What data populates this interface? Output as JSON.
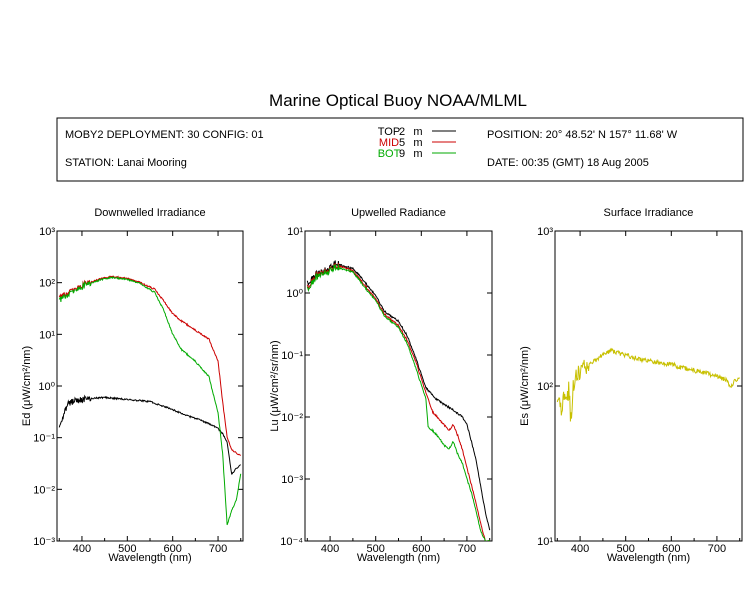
{
  "title": "Marine Optical Buoy NOAA/MLML",
  "info": {
    "deployment": "MOBY2 DEPLOYMENT: 30 CONFIG: 01",
    "station": "STATION: Lanai Mooring",
    "position": "POSITION: 20° 48.52' N   157° 11.68' W",
    "date": "DATE: 00:35 (GMT) 18 Aug 2005"
  },
  "legend": [
    {
      "label": "TOP",
      "depth": "2",
      "unit": "m",
      "color": "#000000"
    },
    {
      "label": "MID",
      "depth": "5",
      "unit": "m",
      "color": "#cc0000"
    },
    {
      "label": "BOT",
      "depth": "9",
      "unit": "m",
      "color": "#00aa00"
    }
  ],
  "chart_data": [
    {
      "type": "line",
      "title": "Downwelled Irradiance",
      "xlabel": "Wavelength (nm)",
      "ylabel": "Ed  (μW/cm²/nm)",
      "xlim": [
        345,
        755
      ],
      "ylim": [
        0.001,
        1000
      ],
      "yscale": "log",
      "xticks": [
        "400",
        "500",
        "600",
        "700"
      ],
      "yticks": [
        "10⁻³",
        "10⁻²",
        "10⁻¹",
        "10⁰",
        "10¹",
        "10²",
        "10³"
      ],
      "series": [
        {
          "name": "TOP",
          "color": "#000000",
          "x": [
            350,
            360,
            370,
            380,
            400,
            450,
            500,
            550,
            600,
            630,
            660,
            690,
            700,
            710,
            720,
            725,
            730,
            740,
            750
          ],
          "y": [
            0.15,
            0.3,
            0.45,
            0.5,
            0.55,
            0.6,
            0.55,
            0.5,
            0.35,
            0.27,
            0.22,
            0.17,
            0.15,
            0.12,
            0.08,
            0.04,
            0.02,
            0.025,
            0.03
          ]
        },
        {
          "name": "MID",
          "color": "#cc0000",
          "x": [
            350,
            375,
            400,
            450,
            470,
            500,
            530,
            560,
            580,
            600,
            620,
            650,
            680,
            700,
            710,
            720,
            730,
            740,
            750
          ],
          "y": [
            50,
            65,
            90,
            125,
            130,
            120,
            100,
            75,
            45,
            25,
            18,
            12,
            8,
            3,
            0.5,
            0.1,
            0.06,
            0.05,
            0.045
          ]
        },
        {
          "name": "BOT",
          "color": "#00aa00",
          "x": [
            350,
            375,
            400,
            450,
            470,
            500,
            530,
            560,
            580,
            600,
            620,
            650,
            680,
            700,
            710,
            715,
            720,
            730,
            740,
            750
          ],
          "y": [
            45,
            60,
            85,
            120,
            125,
            115,
            95,
            65,
            30,
            10,
            5,
            3,
            1.5,
            0.3,
            0.05,
            0.01,
            0.002,
            0.004,
            0.006,
            0.02
          ]
        }
      ]
    },
    {
      "type": "line",
      "title": "Upwelled Radiance",
      "xlabel": "Wavelength (nm)",
      "ylabel": "Lu  (μW/cm²/sr/nm)",
      "xlim": [
        345,
        755
      ],
      "ylim": [
        0.0001,
        10
      ],
      "yscale": "log",
      "xticks": [
        "400",
        "500",
        "600",
        "700"
      ],
      "yticks": [
        "10⁻⁴",
        "10⁻³",
        "10⁻²",
        "10⁻¹",
        "10⁰",
        "10¹"
      ],
      "series": [
        {
          "name": "TOP",
          "color": "#000000",
          "x": [
            350,
            370,
            390,
            410,
            430,
            450,
            470,
            500,
            520,
            550,
            570,
            590,
            610,
            630,
            650,
            670,
            690,
            700,
            710,
            720,
            730,
            740,
            750
          ],
          "y": [
            1.5,
            2.0,
            2.3,
            3.0,
            2.7,
            2.5,
            1.7,
            0.9,
            0.5,
            0.35,
            0.2,
            0.08,
            0.03,
            0.02,
            0.016,
            0.013,
            0.01,
            0.0075,
            0.004,
            0.002,
            0.0008,
            0.0003,
            0.00015
          ]
        },
        {
          "name": "MID",
          "color": "#cc0000",
          "x": [
            350,
            370,
            390,
            410,
            430,
            450,
            470,
            500,
            520,
            550,
            570,
            590,
            610,
            615,
            625,
            640,
            650,
            660,
            670,
            680,
            690,
            700,
            710,
            720,
            730,
            740,
            750
          ],
          "y": [
            1.3,
            1.9,
            2.2,
            2.7,
            2.6,
            2.3,
            1.5,
            0.8,
            0.45,
            0.3,
            0.17,
            0.07,
            0.025,
            0.02,
            0.012,
            0.009,
            0.0075,
            0.006,
            0.0075,
            0.005,
            0.003,
            0.0015,
            0.0008,
            0.0004,
            0.0002,
            0.0001,
            0.0001
          ]
        },
        {
          "name": "BOT",
          "color": "#00aa00",
          "x": [
            350,
            370,
            390,
            410,
            430,
            450,
            470,
            500,
            520,
            550,
            570,
            590,
            610,
            615,
            625,
            640,
            650,
            660,
            670,
            680,
            690,
            700,
            710,
            720,
            730,
            740,
            750
          ],
          "y": [
            1.2,
            1.8,
            2.1,
            2.6,
            2.4,
            2.2,
            1.4,
            0.75,
            0.42,
            0.28,
            0.15,
            0.055,
            0.02,
            0.007,
            0.006,
            0.0045,
            0.0035,
            0.003,
            0.004,
            0.0025,
            0.0018,
            0.001,
            0.0006,
            0.0003,
            0.00015,
            0.0001,
            0.0001
          ]
        }
      ]
    },
    {
      "type": "line",
      "title": "Surface Irradiance",
      "xlabel": "Wavelength (nm)",
      "ylabel": "Es  (μW/cm²/nm)",
      "xlim": [
        345,
        755
      ],
      "ylim": [
        10,
        1000
      ],
      "yscale": "log",
      "xticks": [
        "400",
        "500",
        "600",
        "700"
      ],
      "yticks": [
        "10¹",
        "10²",
        "10³"
      ],
      "series": [
        {
          "name": "Es",
          "color": "#c8c000",
          "x": [
            350,
            355,
            360,
            365,
            370,
            375,
            380,
            385,
            390,
            400,
            410,
            420,
            430,
            440,
            450,
            460,
            470,
            480,
            500,
            520,
            550,
            580,
            600,
            620,
            650,
            680,
            700,
            720,
            730,
            740,
            750
          ],
          "y": [
            75,
            85,
            70,
            90,
            75,
            95,
            60,
            100,
            115,
            125,
            135,
            140,
            145,
            150,
            160,
            165,
            168,
            165,
            158,
            152,
            145,
            140,
            138,
            132,
            126,
            120,
            115,
            110,
            100,
            108,
            112
          ]
        }
      ]
    }
  ]
}
